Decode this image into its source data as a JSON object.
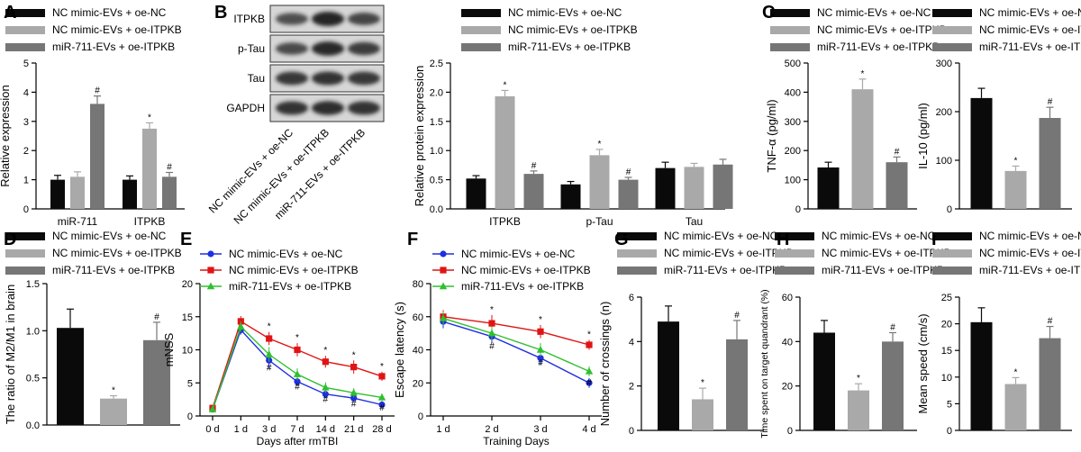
{
  "colors": {
    "black": "#0a0a0a",
    "light": "#a9a9a9",
    "mid": "#767676",
    "blue": "#1f2fe0",
    "red": "#e01414",
    "green": "#2fc02f"
  },
  "groups": [
    "NC mimic-EVs + oe-NC",
    "NC mimic-EVs + oe-ITPKB",
    "miR-711-EVs + oe-ITPKB"
  ],
  "chart_data": [
    {
      "panel": "A",
      "type": "bar",
      "categories": [
        "miR-711",
        "ITPKB"
      ],
      "ylabel": "Relative expression",
      "ylim": [
        0,
        5
      ],
      "yticks": [
        0,
        1,
        2,
        3,
        4,
        5
      ],
      "series": [
        {
          "name": "NC mimic-EVs + oe-NC",
          "values": [
            1.0,
            1.0
          ],
          "errors": [
            0.15,
            0.13
          ],
          "marks": [
            "",
            ""
          ]
        },
        {
          "name": "NC mimic-EVs + oe-ITPKB",
          "values": [
            1.1,
            2.75
          ],
          "errors": [
            0.17,
            0.2
          ],
          "marks": [
            "",
            "*"
          ]
        },
        {
          "name": "miR-711-EVs + oe-ITPKB",
          "values": [
            3.6,
            1.1
          ],
          "errors": [
            0.27,
            0.15
          ],
          "marks": [
            "#",
            "#"
          ]
        }
      ]
    },
    {
      "panel": "B",
      "type": "bar",
      "categories": [
        "ITPKB",
        "p-Tau",
        "Tau"
      ],
      "ylabel": "Relative protein expression",
      "ylim": [
        0,
        2.5
      ],
      "yticks": [
        "0.0",
        "0.5",
        "1.0",
        "1.5",
        "2.0",
        "2.5"
      ],
      "series": [
        {
          "name": "NC mimic-EVs + oe-NC",
          "values": [
            0.52,
            0.42,
            0.7
          ],
          "errors": [
            0.05,
            0.05,
            0.1
          ],
          "marks": [
            "",
            "",
            ""
          ]
        },
        {
          "name": "NC mimic-EVs + oe-ITPKB",
          "values": [
            1.93,
            0.92,
            0.72
          ],
          "errors": [
            0.1,
            0.1,
            0.06
          ],
          "marks": [
            "*",
            "*",
            ""
          ]
        },
        {
          "name": "miR-711-EVs + oe-ITPKB",
          "values": [
            0.6,
            0.5,
            0.76
          ],
          "errors": [
            0.05,
            0.04,
            0.09
          ],
          "marks": [
            "#",
            "#",
            ""
          ]
        }
      ]
    },
    {
      "panel": "C",
      "type": "bar",
      "categories": [
        ""
      ],
      "ylabel": "TNF-α (pg/ml)",
      "ylim": [
        0,
        500
      ],
      "yticks": [
        0,
        100,
        200,
        300,
        400,
        500
      ],
      "series": [
        {
          "name": "NC mimic-EVs + oe-NC",
          "values": [
            142
          ],
          "errors": [
            18
          ],
          "marks": [
            ""
          ]
        },
        {
          "name": "NC mimic-EVs + oe-ITPKB",
          "values": [
            410
          ],
          "errors": [
            35
          ],
          "marks": [
            "*"
          ]
        },
        {
          "name": "miR-711-EVs + oe-ITPKB",
          "values": [
            160
          ],
          "errors": [
            18
          ],
          "marks": [
            "#"
          ]
        }
      ]
    },
    {
      "panel": "C2",
      "type": "bar",
      "categories": [
        ""
      ],
      "ylabel": "IL-10 (pg/ml)",
      "ylim": [
        0,
        300
      ],
      "yticks": [
        0,
        100,
        200,
        300
      ],
      "series": [
        {
          "name": "NC mimic-EVs + oe-NC",
          "values": [
            228
          ],
          "errors": [
            20
          ],
          "marks": [
            ""
          ]
        },
        {
          "name": "NC mimic-EVs + oe-ITPKB",
          "values": [
            78
          ],
          "errors": [
            10
          ],
          "marks": [
            "*"
          ]
        },
        {
          "name": "miR-711-EVs + oe-ITPKB",
          "values": [
            187
          ],
          "errors": [
            22
          ],
          "marks": [
            "#"
          ]
        }
      ]
    },
    {
      "panel": "D",
      "type": "bar",
      "categories": [
        ""
      ],
      "ylabel": "The ratio of M2/M1 in brain",
      "ylim": [
        0,
        1.5
      ],
      "yticks": [
        "0.0",
        "0.5",
        "1.0",
        "1.5"
      ],
      "series": [
        {
          "name": "NC mimic-EVs + oe-NC",
          "values": [
            1.03
          ],
          "errors": [
            0.2
          ],
          "marks": [
            ""
          ]
        },
        {
          "name": "NC mimic-EVs + oe-ITPKB",
          "values": [
            0.28
          ],
          "errors": [
            0.03
          ],
          "marks": [
            "*"
          ]
        },
        {
          "name": "miR-711-EVs + oe-ITPKB",
          "values": [
            0.9
          ],
          "errors": [
            0.19
          ],
          "marks": [
            "#"
          ]
        }
      ]
    },
    {
      "panel": "E",
      "type": "line",
      "x": [
        "0 d",
        "1 d",
        "3 d",
        "7 d",
        "14 d",
        "21 d",
        "28 d"
      ],
      "xlabel": "Days after rmTBI",
      "ylabel": "mNSS",
      "ylim": [
        0,
        20
      ],
      "yticks": [
        0,
        5,
        10,
        15,
        20
      ],
      "series": [
        {
          "name": "NC mimic-EVs + oe-NC",
          "color": "blue",
          "marker": "circle",
          "values": [
            1,
            13,
            8.4,
            5.2,
            3.3,
            2.7,
            1.7
          ],
          "errors": [
            0.4,
            0.7,
            1.2,
            0.7,
            0.6,
            0.5,
            0.5
          ]
        },
        {
          "name": "NC mimic-EVs + oe-ITPKB",
          "color": "red",
          "marker": "square",
          "values": [
            1.2,
            14.3,
            11.7,
            10,
            8.2,
            7.4,
            6
          ],
          "errors": [
            0.4,
            0.8,
            1,
            1,
            0.9,
            1,
            0.7
          ]
        },
        {
          "name": "miR-711-EVs + oe-ITPKB",
          "color": "green",
          "marker": "triangle",
          "values": [
            1,
            13.5,
            9.3,
            6.3,
            4.3,
            3.5,
            2.8
          ],
          "errors": [
            0.4,
            0.8,
            1.1,
            0.9,
            0.8,
            0.7,
            0.6
          ]
        }
      ],
      "marks": [
        {
          "x": "3 d",
          "text": "*"
        },
        {
          "x": "7 d",
          "text": "*"
        },
        {
          "x": "14 d",
          "text": "*"
        },
        {
          "x": "21 d",
          "text": "*"
        },
        {
          "x": "28 d",
          "text": "*"
        },
        {
          "x": "3 d",
          "text": "#"
        },
        {
          "x": "7 d",
          "text": "#"
        },
        {
          "x": "14 d",
          "text": "#"
        },
        {
          "x": "21 d",
          "text": "#"
        },
        {
          "x": "28 d",
          "text": "#"
        }
      ]
    },
    {
      "panel": "F",
      "type": "line",
      "x": [
        "1 d",
        "2 d",
        "3 d",
        "4 d"
      ],
      "xlabel": "Training Days",
      "ylabel": "Escape latency (s)",
      "ylim": [
        0,
        80
      ],
      "yticks": [
        0,
        20,
        40,
        60,
        80
      ],
      "series": [
        {
          "name": "NC mimic-EVs + oe-NC",
          "color": "blue",
          "marker": "circle",
          "values": [
            57,
            48,
            35,
            20
          ],
          "errors": [
            4,
            4,
            4,
            3
          ]
        },
        {
          "name": "NC mimic-EVs + oe-ITPKB",
          "color": "red",
          "marker": "square",
          "values": [
            60,
            56,
            51,
            43
          ],
          "errors": [
            4,
            5,
            4,
            3
          ]
        },
        {
          "name": "miR-711-EVs + oe-ITPKB",
          "color": "green",
          "marker": "triangle",
          "values": [
            59,
            50,
            40,
            27
          ],
          "errors": [
            4,
            4,
            4,
            3
          ]
        }
      ],
      "marks": [
        {
          "x": "2 d",
          "text": "*"
        },
        {
          "x": "3 d",
          "text": "*"
        },
        {
          "x": "4 d",
          "text": "*"
        },
        {
          "x": "2 d",
          "text": "#"
        },
        {
          "x": "3 d",
          "text": "#"
        },
        {
          "x": "4 d",
          "text": "#"
        }
      ]
    },
    {
      "panel": "G",
      "type": "bar",
      "categories": [
        ""
      ],
      "ylabel": "Number of crossings (n)",
      "ylim": [
        0,
        6
      ],
      "yticks": [
        0,
        2,
        4,
        6
      ],
      "series": [
        {
          "name": "NC mimic-EVs + oe-NC",
          "values": [
            4.9
          ],
          "errors": [
            0.7
          ],
          "marks": [
            ""
          ]
        },
        {
          "name": "NC mimic-EVs + oe-ITPKB",
          "values": [
            1.4
          ],
          "errors": [
            0.5
          ],
          "marks": [
            "*"
          ]
        },
        {
          "name": "miR-711-EVs + oe-ITPKB",
          "values": [
            4.1
          ],
          "errors": [
            0.85
          ],
          "marks": [
            "#"
          ]
        }
      ]
    },
    {
      "panel": "H",
      "type": "bar",
      "categories": [
        ""
      ],
      "ylabel": "Time spent on target quandrant (%)",
      "ylim": [
        0,
        60
      ],
      "yticks": [
        0,
        20,
        40,
        60
      ],
      "series": [
        {
          "name": "NC mimic-EVs + oe-NC",
          "values": [
            44
          ],
          "errors": [
            5.5
          ],
          "marks": [
            ""
          ]
        },
        {
          "name": "NC mimic-EVs + oe-ITPKB",
          "values": [
            18
          ],
          "errors": [
            3
          ],
          "marks": [
            "*"
          ]
        },
        {
          "name": "miR-711-EVs + oe-ITPKB",
          "values": [
            40
          ],
          "errors": [
            4
          ],
          "marks": [
            "#"
          ]
        }
      ]
    },
    {
      "panel": "I",
      "type": "bar",
      "categories": [
        ""
      ],
      "ylabel": "Mean speed (cm/s)",
      "ylim": [
        0,
        25
      ],
      "yticks": [
        0,
        5,
        10,
        15,
        20,
        25
      ],
      "series": [
        {
          "name": "NC mimic-EVs + oe-NC",
          "values": [
            20.3
          ],
          "errors": [
            2.7
          ],
          "marks": [
            ""
          ]
        },
        {
          "name": "NC mimic-EVs + oe-ITPKB",
          "values": [
            8.7
          ],
          "errors": [
            1.2
          ],
          "marks": [
            "*"
          ]
        },
        {
          "name": "miR-711-EVs + oe-ITPKB",
          "values": [
            17.3
          ],
          "errors": [
            2.2
          ],
          "marks": [
            "#"
          ]
        }
      ]
    }
  ],
  "blot": {
    "rows": [
      "ITPKB",
      "p-Tau",
      "Tau",
      "GAPDH"
    ]
  }
}
